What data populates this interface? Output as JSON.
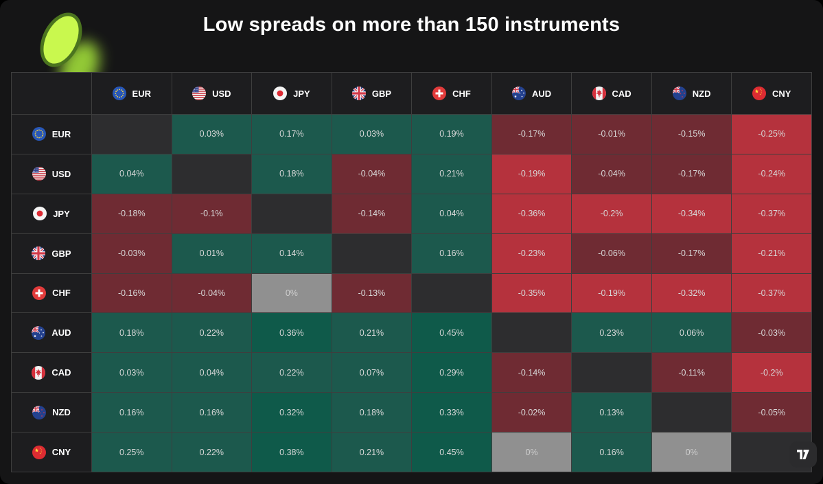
{
  "title": "Low spreads on more than 150 instruments",
  "logo": {
    "icon": "green-coin-logo",
    "color": "#c9f84e",
    "border_color": "#4b741f"
  },
  "attribution": {
    "icon": "tradingview-logo"
  },
  "palette": {
    "page_bg": "#151516",
    "header_bg": "#1d1d1f",
    "diagonal_bg": "#2d2d2f",
    "green": "#1c594d",
    "green_bright": "#0f5a4a",
    "red_dark": "#6f2b33",
    "red_bright": "#b5323d",
    "zero_gray": "#909090",
    "grid_line": "#3e3e3e",
    "cell_text": "#d8d8d8",
    "zero_text": "#cfcfcf",
    "header_text": "#ffffff"
  },
  "heatmap": {
    "columns": [
      "EUR",
      "USD",
      "JPY",
      "GBP",
      "CHF",
      "AUD",
      "CAD",
      "NZD",
      "CNY"
    ],
    "rows": [
      {
        "label": "EUR",
        "cells": [
          "",
          "0.03%",
          "0.17%",
          "0.03%",
          "0.19%",
          "-0.17%",
          "-0.01%",
          "-0.15%",
          "-0.25%"
        ]
      },
      {
        "label": "USD",
        "cells": [
          "0.04%",
          "",
          "0.18%",
          "-0.04%",
          "0.21%",
          "-0.19%",
          "-0.04%",
          "-0.17%",
          "-0.24%"
        ]
      },
      {
        "label": "JPY",
        "cells": [
          "-0.18%",
          "-0.1%",
          "",
          "-0.14%",
          "0.04%",
          "-0.36%",
          "-0.2%",
          "-0.34%",
          "-0.37%"
        ]
      },
      {
        "label": "GBP",
        "cells": [
          "-0.03%",
          "0.01%",
          "0.14%",
          "",
          "0.16%",
          "-0.23%",
          "-0.06%",
          "-0.17%",
          "-0.21%"
        ]
      },
      {
        "label": "CHF",
        "cells": [
          "-0.16%",
          "-0.04%",
          "0%",
          "-0.13%",
          "",
          "-0.35%",
          "-0.19%",
          "-0.32%",
          "-0.37%"
        ]
      },
      {
        "label": "AUD",
        "cells": [
          "0.18%",
          "0.22%",
          "0.36%",
          "0.21%",
          "0.45%",
          "",
          "0.23%",
          "0.06%",
          "-0.03%"
        ]
      },
      {
        "label": "CAD",
        "cells": [
          "0.03%",
          "0.04%",
          "0.22%",
          "0.07%",
          "0.29%",
          "-0.14%",
          "",
          "-0.11%",
          "-0.2%"
        ]
      },
      {
        "label": "NZD",
        "cells": [
          "0.16%",
          "0.16%",
          "0.32%",
          "0.18%",
          "0.33%",
          "-0.02%",
          "0.13%",
          "",
          "-0.05%"
        ]
      },
      {
        "label": "CNY",
        "cells": [
          "0.25%",
          "0.22%",
          "0.38%",
          "0.21%",
          "0.45%",
          "0%",
          "0.16%",
          "0%",
          ""
        ]
      }
    ]
  },
  "chart_data": {
    "type": "heatmap",
    "title": "Low spreads on more than 150 instruments",
    "x_categories": [
      "EUR",
      "USD",
      "JPY",
      "GBP",
      "CHF",
      "AUD",
      "CAD",
      "NZD",
      "CNY"
    ],
    "y_categories": [
      "EUR",
      "USD",
      "JPY",
      "GBP",
      "CHF",
      "AUD",
      "CAD",
      "NZD",
      "CNY"
    ],
    "values_pct": [
      [
        null,
        0.03,
        0.17,
        0.03,
        0.19,
        -0.17,
        -0.01,
        -0.15,
        -0.25
      ],
      [
        0.04,
        null,
        0.18,
        -0.04,
        0.21,
        -0.19,
        -0.04,
        -0.17,
        -0.24
      ],
      [
        -0.18,
        -0.1,
        null,
        -0.14,
        0.04,
        -0.36,
        -0.2,
        -0.34,
        -0.37
      ],
      [
        -0.03,
        0.01,
        0.14,
        null,
        0.16,
        -0.23,
        -0.06,
        -0.17,
        -0.21
      ],
      [
        -0.16,
        -0.04,
        0,
        -0.13,
        null,
        -0.35,
        -0.19,
        -0.32,
        -0.37
      ],
      [
        0.18,
        0.22,
        0.36,
        0.21,
        0.45,
        null,
        0.23,
        0.06,
        -0.03
      ],
      [
        0.03,
        0.04,
        0.22,
        0.07,
        0.29,
        -0.14,
        null,
        -0.11,
        -0.2
      ],
      [
        0.16,
        0.16,
        0.32,
        0.18,
        0.33,
        -0.02,
        0.13,
        null,
        -0.05
      ],
      [
        0.25,
        0.22,
        0.38,
        0.21,
        0.45,
        0,
        0.16,
        0,
        null
      ]
    ],
    "legend_position": "none",
    "grid": true,
    "color_rule": "positive=green (brighter when >=0.29), negative=red (brighter when <=-0.19), zero=gray, diagonal=dark blank"
  }
}
